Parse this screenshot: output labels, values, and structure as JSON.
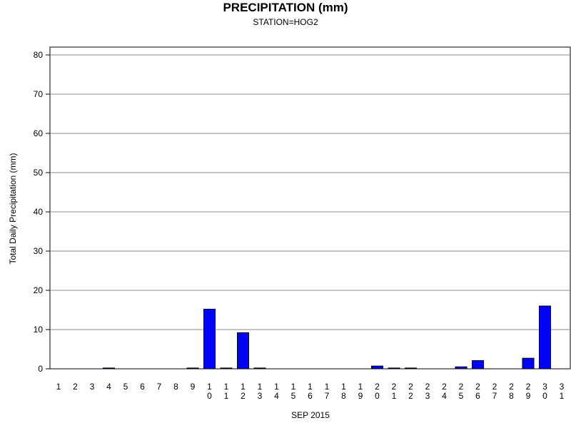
{
  "chart_data": {
    "type": "bar",
    "title": "PRECIPITATION (mm)",
    "subtitle": "STATION=HOG2",
    "xlabel": "SEP 2015",
    "ylabel": "Total Daily Precipitation (mm)",
    "ylim": [
      0,
      80
    ],
    "yticks": [
      0,
      10,
      20,
      30,
      40,
      50,
      60,
      70,
      80
    ],
    "grid": true,
    "bar_color": "#0000ff",
    "categories": [
      "1",
      "2",
      "3",
      "4",
      "5",
      "6",
      "7",
      "8",
      "9",
      "10",
      "11",
      "12",
      "13",
      "14",
      "15",
      "16",
      "17",
      "18",
      "19",
      "20",
      "21",
      "22",
      "23",
      "24",
      "25",
      "26",
      "27",
      "28",
      "29",
      "30",
      "31"
    ],
    "values": [
      0,
      0,
      0,
      0.2,
      0,
      0,
      0,
      0,
      0.2,
      15.2,
      0.2,
      9.2,
      0.2,
      0,
      0,
      0,
      0,
      0,
      0,
      0.7,
      0.2,
      0.2,
      0,
      0,
      0.5,
      2.1,
      0,
      0,
      2.7,
      16.0,
      null
    ]
  }
}
